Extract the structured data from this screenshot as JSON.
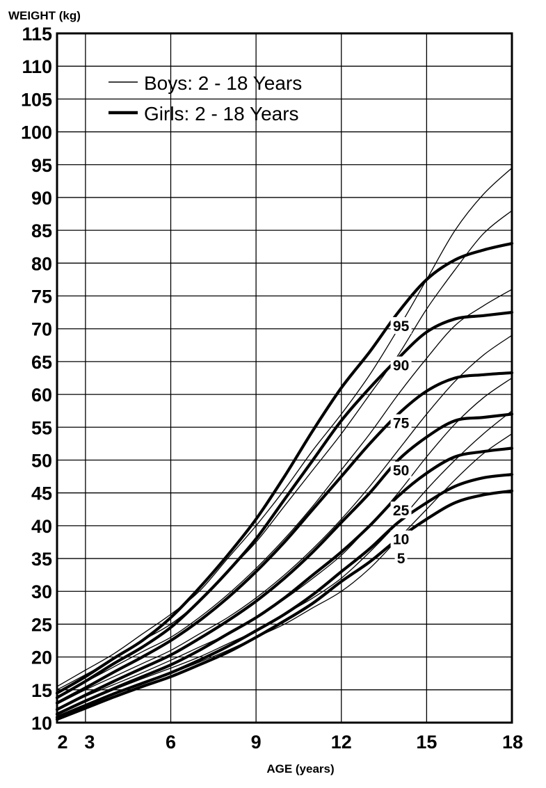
{
  "chart_data": {
    "type": "line",
    "title": "",
    "xlabel": "AGE (years)",
    "ylabel": "WEIGHT (kg)",
    "xlim": [
      2,
      18
    ],
    "ylim": [
      10,
      115
    ],
    "x_ticks": [
      2,
      3,
      6,
      9,
      12,
      15,
      18
    ],
    "y_ticks": [
      10,
      15,
      20,
      25,
      30,
      35,
      40,
      45,
      50,
      55,
      60,
      65,
      70,
      75,
      80,
      85,
      90,
      95,
      100,
      105,
      110,
      115
    ],
    "grid": true,
    "legend": {
      "placement": "top-left",
      "entries": [
        {
          "label": "Boys: 2 - 18 Years",
          "style": "thin"
        },
        {
          "label": "Girls: 2 - 18 Years",
          "style": "thick"
        }
      ]
    },
    "annotations": [
      {
        "text": "95",
        "x": 14.1,
        "y": 70.5
      },
      {
        "text": "90",
        "x": 14.1,
        "y": 64.5
      },
      {
        "text": "75",
        "x": 14.1,
        "y": 55.7
      },
      {
        "text": "50",
        "x": 14.1,
        "y": 48.5
      },
      {
        "text": "25",
        "x": 14.1,
        "y": 42.4
      },
      {
        "text": "10",
        "x": 14.1,
        "y": 38.0
      },
      {
        "text": "5",
        "x": 14.1,
        "y": 35.1
      }
    ],
    "x": [
      2,
      3,
      4,
      5,
      6,
      7,
      8,
      9,
      10,
      11,
      12,
      13,
      14,
      15,
      16,
      17,
      18
    ],
    "series": [
      {
        "name": "Boys 95th",
        "group": "boys",
        "values": [
          15.5,
          18.0,
          20.5,
          23.5,
          26.5,
          30.0,
          35.0,
          40.0,
          45.5,
          51.5,
          57.0,
          63.0,
          70.0,
          77.5,
          85.0,
          90.5,
          94.5
        ]
      },
      {
        "name": "Boys 90th",
        "group": "boys",
        "values": [
          15.0,
          17.3,
          19.7,
          22.5,
          25.0,
          28.5,
          33.0,
          37.5,
          43.0,
          48.5,
          54.0,
          60.0,
          66.0,
          73.0,
          79.0,
          84.5,
          88.0
        ]
      },
      {
        "name": "Boys 75th",
        "group": "boys",
        "values": [
          14.0,
          16.2,
          18.5,
          20.8,
          23.0,
          26.0,
          29.5,
          33.5,
          38.0,
          43.0,
          48.5,
          54.0,
          60.0,
          65.5,
          70.5,
          73.5,
          76.0
        ]
      },
      {
        "name": "Boys 50th",
        "group": "boys",
        "values": [
          12.8,
          15.0,
          17.0,
          19.0,
          21.0,
          23.5,
          26.0,
          29.0,
          32.5,
          36.5,
          41.0,
          46.0,
          51.5,
          57.0,
          62.0,
          66.0,
          69.0
        ]
      },
      {
        "name": "Boys 25th",
        "group": "boys",
        "values": [
          12.0,
          14.0,
          15.8,
          17.6,
          19.5,
          21.5,
          23.5,
          26.0,
          28.8,
          32.0,
          35.5,
          40.0,
          45.0,
          50.5,
          55.5,
          59.5,
          62.5
        ]
      },
      {
        "name": "Boys 10th",
        "group": "boys",
        "values": [
          11.4,
          13.2,
          15.0,
          16.7,
          18.3,
          20.0,
          22.0,
          24.0,
          26.5,
          29.0,
          32.0,
          36.0,
          40.5,
          45.5,
          50.0,
          54.0,
          57.5
        ]
      },
      {
        "name": "Boys 5th",
        "group": "boys",
        "values": [
          11.0,
          12.8,
          14.5,
          16.0,
          17.5,
          19.2,
          21.0,
          23.0,
          25.0,
          27.5,
          30.0,
          33.5,
          38.0,
          42.5,
          47.0,
          51.0,
          54.0
        ]
      },
      {
        "name": "Girls 95th",
        "group": "girls",
        "values": [
          14.5,
          17.0,
          19.8,
          22.5,
          26.0,
          30.5,
          35.5,
          41.0,
          47.5,
          54.5,
          61.0,
          66.5,
          72.5,
          77.5,
          80.5,
          82.0,
          83.0
        ]
      },
      {
        "name": "Girls 90th",
        "group": "girls",
        "values": [
          13.8,
          16.3,
          19.0,
          21.5,
          24.5,
          28.5,
          33.0,
          38.0,
          44.0,
          50.0,
          56.0,
          61.0,
          65.5,
          69.5,
          71.5,
          72.0,
          72.5
        ]
      },
      {
        "name": "Girls 75th",
        "group": "girls",
        "values": [
          13.0,
          15.3,
          17.7,
          20.0,
          22.5,
          25.5,
          29.0,
          33.0,
          37.5,
          42.5,
          47.5,
          52.5,
          57.0,
          60.5,
          62.5,
          63.0,
          63.3
        ]
      },
      {
        "name": "Girls 50th",
        "group": "girls",
        "values": [
          12.0,
          14.2,
          16.3,
          18.3,
          20.3,
          22.8,
          25.5,
          28.5,
          32.0,
          36.0,
          40.5,
          45.0,
          50.0,
          53.5,
          56.0,
          56.5,
          57.0
        ]
      },
      {
        "name": "Girls 25th",
        "group": "girls",
        "values": [
          11.3,
          13.3,
          15.2,
          17.0,
          18.8,
          21.0,
          23.5,
          26.0,
          29.0,
          32.5,
          36.0,
          40.0,
          44.5,
          48.0,
          50.5,
          51.3,
          51.8
        ]
      },
      {
        "name": "Girls 10th",
        "group": "girls",
        "values": [
          10.8,
          12.6,
          14.4,
          16.0,
          17.6,
          19.5,
          21.6,
          24.0,
          26.5,
          29.5,
          33.0,
          36.5,
          40.5,
          43.5,
          46.0,
          47.3,
          47.8
        ]
      },
      {
        "name": "Girls 5th",
        "group": "girls",
        "values": [
          10.5,
          12.2,
          13.9,
          15.5,
          17.0,
          18.8,
          20.7,
          23.0,
          25.5,
          28.2,
          31.5,
          34.5,
          38.0,
          41.0,
          43.5,
          44.7,
          45.3
        ]
      }
    ]
  }
}
